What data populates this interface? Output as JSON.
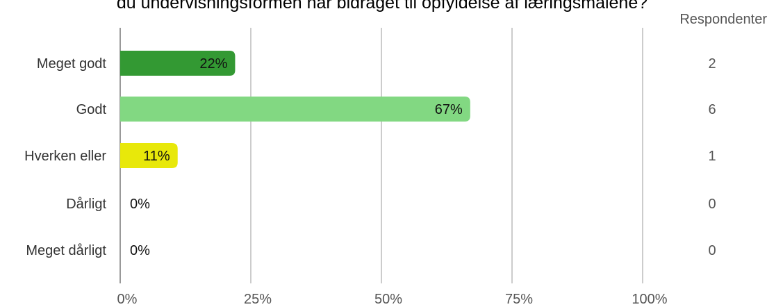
{
  "chart_data": {
    "type": "bar",
    "orientation": "horizontal",
    "title": "du undervisningsformen har bidraget til opfyldelse af læringsmålene?",
    "categories": [
      "Meget godt",
      "Godt",
      "Hverken eller",
      "Dårligt",
      "Meget dårligt"
    ],
    "values": [
      22,
      67,
      11,
      0,
      0
    ],
    "value_labels": [
      "22%",
      "67%",
      "11%",
      "0%",
      "0%"
    ],
    "colors": [
      "#339933",
      "#82d882",
      "#e8e80a",
      "#c8c8c8",
      "#c8c8c8"
    ],
    "respondents_header": "Respondenter",
    "respondents": [
      "2",
      "6",
      "1",
      "0",
      "0"
    ],
    "x_ticks": [
      "0%",
      "25%",
      "50%",
      "75%",
      "100%"
    ],
    "xlim": [
      0,
      100
    ],
    "grid": true,
    "axis_color": "#999999",
    "grid_color": "#999999"
  }
}
